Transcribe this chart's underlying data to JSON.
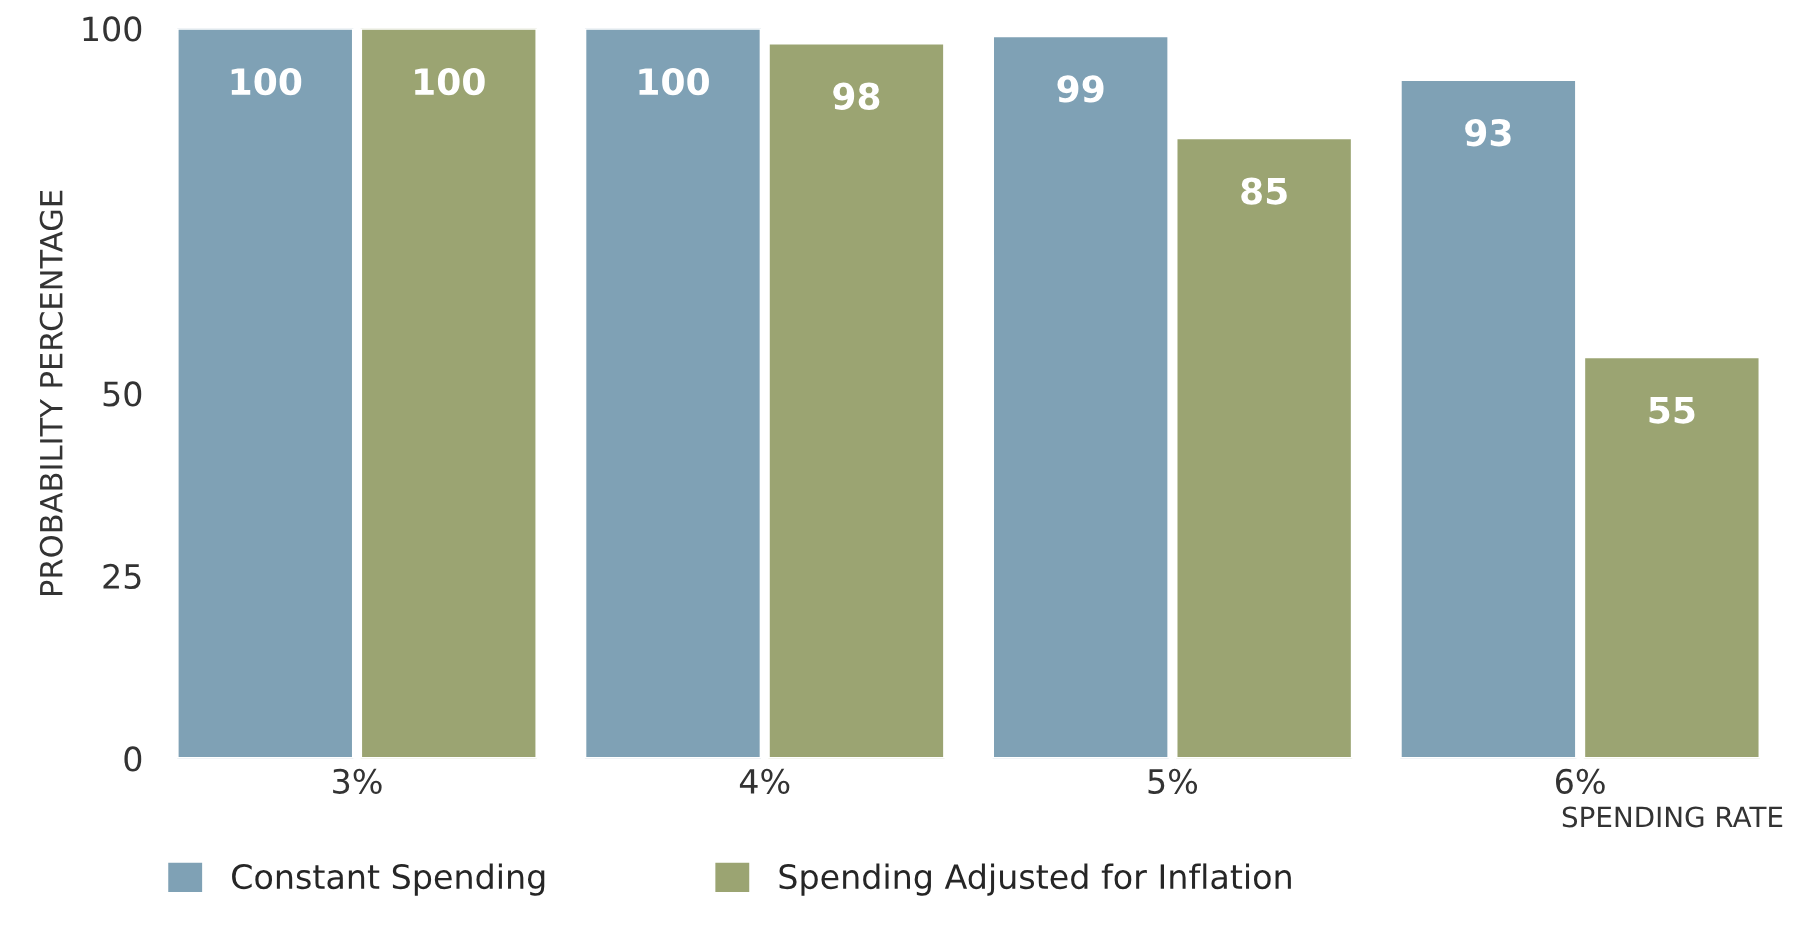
{
  "chart_data": {
    "type": "bar",
    "ylabel": "PROBABILITY PERCENTAGE",
    "xlabel": "SPENDING RATE",
    "categories": [
      "3%",
      "4%",
      "5%",
      "6%"
    ],
    "series": [
      {
        "name": "Constant Spending",
        "color": "#7fa1b5",
        "values": [
          100,
          100,
          99,
          93
        ]
      },
      {
        "name": "Spending Adjusted for Inflation",
        "color": "#9ba472",
        "values": [
          100,
          98,
          85,
          55
        ]
      }
    ],
    "ylim": [
      0,
      100
    ],
    "yticks": [
      0,
      25,
      50,
      100
    ],
    "data_labels": true,
    "legend": "bottom left",
    "grid": false
  }
}
